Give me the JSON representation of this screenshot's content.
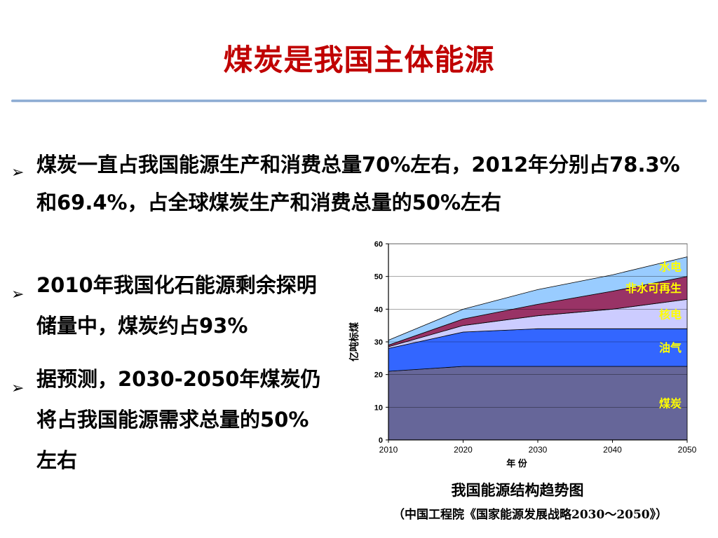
{
  "slide": {
    "title": "煤炭是我国主体能源",
    "bullets": [
      "煤炭一直占我国能源生产和消费总量70%左右，2012年分别占78.3%和69.4%，占全球煤炭生产和消费总量的50%左右",
      "2010年我国化石能源剩余探明储量中，煤炭约占93%",
      "据预测，2030-2050年煤炭仍将占我国能源需求总量的50%左右"
    ],
    "bullet_marker": "➢",
    "chart_caption": "我国能源结构趋势图",
    "chart_source": "（中国工程院《国家能源发展战略2030～2050》）"
  },
  "chart_data": {
    "type": "area",
    "stacked": true,
    "x": [
      2010,
      2020,
      2030,
      2040,
      2050
    ],
    "xlabel": "年 份",
    "ylabel": "亿吨标煤",
    "ylim": [
      0,
      60
    ],
    "yticks": [
      0,
      10,
      20,
      30,
      40,
      50,
      60
    ],
    "grid": true,
    "legend": "inline-right",
    "series": [
      {
        "name": "煤炭",
        "values": [
          21,
          22.5,
          22.5,
          22.5,
          22.5
        ],
        "color": "#666699"
      },
      {
        "name": "油气",
        "values": [
          7,
          10.5,
          11.5,
          11.5,
          11.5
        ],
        "color": "#3366ff"
      },
      {
        "name": "核电",
        "values": [
          0.5,
          2,
          4,
          6,
          9
        ],
        "color": "#ccccff"
      },
      {
        "name": "非水可再生",
        "values": [
          0.5,
          2,
          3.5,
          5.5,
          7
        ],
        "color": "#993366"
      },
      {
        "name": "水电",
        "values": [
          1.5,
          3,
          4.5,
          5,
          6
        ],
        "color": "#99ccff"
      }
    ],
    "label_color": "#ffff00"
  }
}
